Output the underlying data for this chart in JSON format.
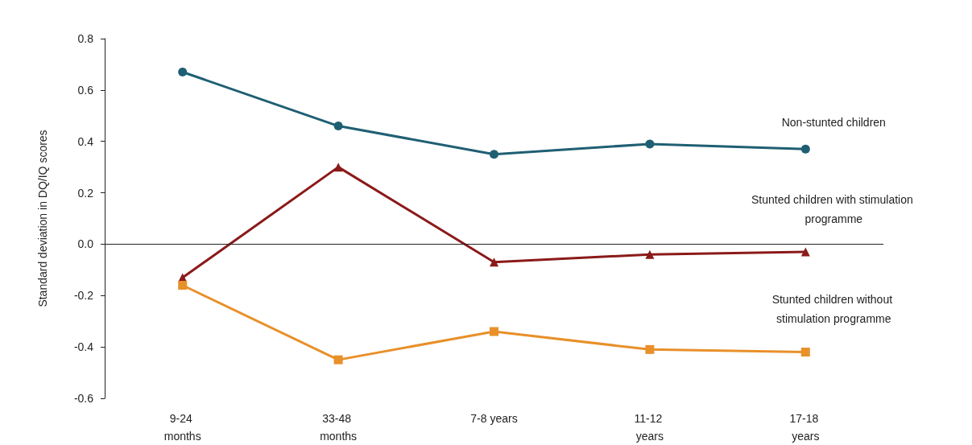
{
  "chart_data": {
    "type": "line",
    "ylabel": "Standard deviation in DQ/IQ scores",
    "categories": [
      "9-24 months",
      "33-48 months",
      "7-8 years",
      "11-12 years",
      "17-18 years"
    ],
    "series": [
      {
        "name": "Non-stunted children",
        "color": "#1f5f73",
        "marker": "circle",
        "values": [
          0.67,
          0.46,
          0.35,
          0.39,
          0.37
        ]
      },
      {
        "name": "Stunted children with stimulation programme",
        "color": "#8b1a1a",
        "marker": "triangle",
        "values": [
          -0.13,
          0.3,
          -0.07,
          -0.04,
          -0.03
        ]
      },
      {
        "name": "Stunted children without stimulation programme",
        "color": "#e8902a",
        "marker": "square",
        "values": [
          -0.16,
          -0.45,
          -0.34,
          -0.41,
          -0.42
        ]
      }
    ],
    "ylim": [
      -0.6,
      0.8
    ],
    "yticks": [
      {
        "value": -0.6,
        "label": "-0.6"
      },
      {
        "value": -0.4,
        "label": "-0.4"
      },
      {
        "value": -0.2,
        "label": "-0.2"
      },
      {
        "value": 0,
        "label": "0.0"
      },
      {
        "value": 0.2,
        "label": "0.2"
      },
      {
        "value": 0.4,
        "label": "0.4"
      },
      {
        "value": 0.6,
        "label": "0.6"
      },
      {
        "value": 0.8,
        "label": "0.8"
      }
    ],
    "ref_lines": [
      {
        "axis": "y",
        "value": 0,
        "color": "#222222"
      }
    ],
    "grid": false,
    "legend": false,
    "line_style": "solid"
  }
}
